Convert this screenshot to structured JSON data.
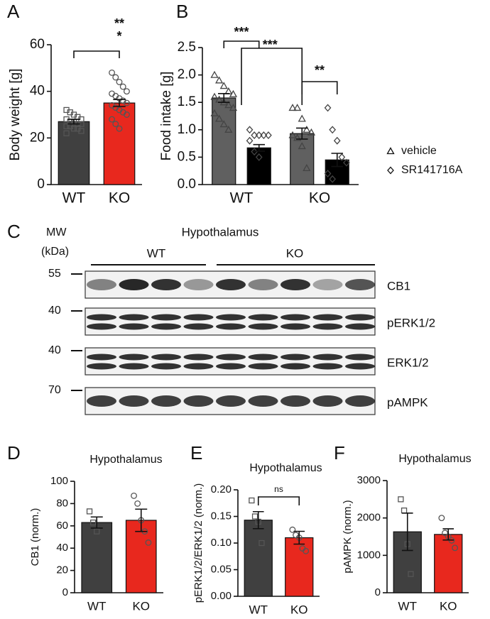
{
  "chart_data": [
    {
      "type": "bar",
      "panel": "A",
      "ylabel": "Body weight [g]",
      "categories": [
        "WT",
        "KO"
      ],
      "values": [
        27,
        35
      ],
      "errors": [
        1,
        1.5
      ],
      "colors": [
        "#404040",
        "#e8281e"
      ],
      "points": [
        [
          32,
          31,
          30,
          29,
          28,
          28,
          27,
          27,
          26,
          26,
          25,
          25,
          24,
          24,
          23,
          22
        ],
        [
          48,
          46,
          44,
          42,
          40,
          39,
          38,
          37,
          36,
          35,
          34,
          33,
          32,
          31,
          30,
          28,
          26,
          24
        ]
      ],
      "point_markers": [
        "square",
        "circle"
      ],
      "ylim": [
        0,
        60
      ],
      "yticks": [
        0,
        20,
        40,
        60
      ],
      "annotations": [
        "**",
        "*"
      ]
    },
    {
      "type": "grouped-bar",
      "panel": "B",
      "ylabel": "Food intake [g]",
      "categories": [
        "WT",
        "KO"
      ],
      "series": [
        {
          "name": "vehicle",
          "color": "#606060",
          "marker": "triangle",
          "values": [
            1.58,
            0.93
          ],
          "errors": [
            0.08,
            0.1
          ],
          "points": [
            [
              2.0,
              1.9,
              1.8,
              1.7,
              1.65,
              1.6,
              1.55,
              1.5,
              1.45,
              1.4,
              1.3,
              1.2,
              1.1,
              1.0
            ],
            [
              1.4,
              1.4,
              1.2,
              1.0,
              0.95,
              0.9,
              0.85,
              0.7,
              0.3
            ]
          ]
        },
        {
          "name": "SR141716A",
          "color": "#000000",
          "marker": "diamond",
          "values": [
            0.67,
            0.45
          ],
          "errors": [
            0.06,
            0.12
          ],
          "points": [
            [
              1.0,
              0.9,
              0.9,
              0.9,
              0.9,
              0.8,
              0.6,
              0.5
            ],
            [
              1.4,
              1.0,
              0.8,
              0.5,
              0.4,
              0.2,
              0.1
            ]
          ]
        }
      ],
      "ylim": [
        0,
        2.5
      ],
      "yticks": [
        {
          "value": 0,
          "label": "0.0"
        },
        0.5,
        {
          "value": 1,
          "label": "1.0"
        },
        1.5,
        {
          "value": 2,
          "label": "2.0"
        },
        2.5
      ],
      "annotations": [
        "***",
        "***",
        "**"
      ]
    },
    {
      "type": "bar",
      "panel": "D",
      "title": "Hypothalamus",
      "ylabel": "CB1 (norm.)",
      "categories": [
        "WT",
        "KO"
      ],
      "values": [
        63,
        65
      ],
      "errors": [
        5,
        10
      ],
      "colors": [
        "#404040",
        "#e8281e"
      ],
      "points": [
        [
          73,
          63,
          55
        ],
        [
          87,
          80,
          65,
          55,
          45
        ]
      ],
      "point_markers": [
        "square",
        "circle"
      ],
      "ylim": [
        0,
        100
      ],
      "yticks": [
        0,
        20,
        40,
        60,
        80,
        100
      ],
      "annotations": []
    },
    {
      "type": "bar",
      "panel": "E",
      "title": "Hypothalamus",
      "ylabel": "pERK1/2/ERK1/2 (norm.)",
      "categories": [
        "WT",
        "KO"
      ],
      "values": [
        0.143,
        0.11
      ],
      "errors": [
        0.016,
        0.012
      ],
      "colors": [
        "#404040",
        "#e8281e"
      ],
      "points": [
        [
          0.18,
          0.15,
          0.14,
          0.1
        ],
        [
          0.125,
          0.115,
          0.11,
          0.09,
          0.085
        ]
      ],
      "point_markers": [
        "square",
        "circle"
      ],
      "ylim": [
        0,
        0.2
      ],
      "yticks": [
        {
          "value": 0,
          "label": "0.00"
        },
        {
          "value": 0.05,
          "label": "0.05"
        },
        {
          "value": 0.1,
          "label": "0.10"
        },
        {
          "value": 0.15,
          "label": "0.15"
        },
        {
          "value": 0.2,
          "label": "0.20"
        }
      ],
      "annotations": [
        "ns"
      ]
    },
    {
      "type": "bar",
      "panel": "F",
      "title": "Hypothalamus",
      "ylabel": "pAMPK (norm.)",
      "categories": [
        "WT",
        "KO"
      ],
      "values": [
        1630,
        1560
      ],
      "errors": [
        500,
        150
      ],
      "colors": [
        "#404040",
        "#e8281e"
      ],
      "points": [
        [
          2500,
          2200,
          1300,
          500
        ],
        [
          2000,
          1600,
          1500,
          1400,
          1200
        ]
      ],
      "point_markers": [
        "square",
        "circle"
      ],
      "ylim": [
        0,
        3000
      ],
      "yticks": [
        0,
        1000,
        2000,
        3000
      ],
      "annotations": []
    }
  ],
  "blot": {
    "panel": "C",
    "title": "Hypothalamus",
    "mw": "MW",
    "kda": "(kDa)",
    "groups": [
      "WT",
      "KO"
    ],
    "rows": [
      {
        "marker": "55",
        "label": "CB1"
      },
      {
        "marker": "40",
        "label": "pERK1/2"
      },
      {
        "marker": "40",
        "label": "ERK1/2"
      },
      {
        "marker": "70",
        "label": "pAMPK"
      }
    ]
  }
}
